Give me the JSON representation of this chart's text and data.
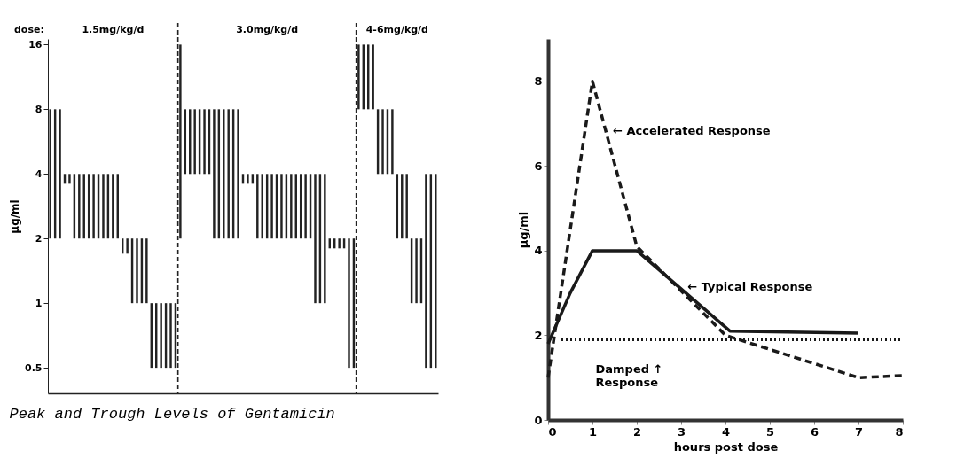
{
  "chart_data": [
    {
      "type": "bar",
      "ylabel": "µg/ml",
      "annotations": [
        "dose:",
        "1.5mg/kg/d",
        "3.0mg/kg/d",
        "4-6mg/kg/d",
        "Peak and Trough Levels of Gentamicin"
      ],
      "log": true,
      "ylim": [
        0.38,
        17
      ],
      "yticks": [
        0.5,
        1,
        2,
        4,
        8,
        16
      ],
      "tick_labels": "y",
      "grid": false,
      "categories": [
        null,
        null,
        null,
        null,
        null,
        null,
        null,
        null,
        null,
        null,
        null,
        null,
        null,
        null,
        null,
        null,
        null,
        null,
        null,
        null,
        null,
        null,
        null,
        null,
        null,
        null,
        null,
        null,
        null,
        null,
        null,
        null,
        null,
        null,
        null,
        null,
        null,
        null,
        null,
        null,
        null,
        null,
        null,
        null,
        null,
        null,
        null,
        null,
        null,
        null,
        null,
        null,
        null,
        null,
        null,
        null,
        null,
        null,
        null,
        null,
        null,
        null,
        null,
        null,
        null,
        null,
        null,
        null,
        null,
        null,
        null,
        null,
        null,
        null,
        null,
        null,
        null,
        null,
        null,
        null,
        null
      ],
      "series": [
        {
          "color": "#222222",
          "base": [
            2,
            2,
            2,
            3.6,
            3.6,
            2,
            2,
            2,
            2,
            2,
            2,
            2,
            2,
            2,
            2,
            1.7,
            1.7,
            1,
            1,
            1,
            1,
            0.5,
            0.5,
            0.5,
            0.5,
            0.5,
            0.5,
            null,
            null,
            null,
            null,
            null,
            null,
            null,
            null,
            null,
            null,
            null,
            null,
            null,
            null,
            null,
            null,
            null,
            null,
            null,
            null,
            null,
            null,
            null,
            null,
            null,
            null,
            null,
            null,
            null,
            null,
            null,
            null,
            null,
            null,
            null,
            null,
            null,
            null,
            null,
            null,
            null,
            null,
            null,
            null,
            null,
            null,
            null,
            null,
            null,
            null,
            null,
            null,
            null,
            null
          ],
          "values": [
            6,
            6,
            6,
            0.4,
            0.4,
            2,
            2,
            2,
            2,
            2,
            2,
            2,
            2,
            2,
            2,
            0.3,
            0.3,
            1,
            1,
            1,
            1,
            0.5,
            0.5,
            0.5,
            0.5,
            0.5,
            0.5,
            null,
            null,
            null,
            null,
            null,
            null,
            null,
            null,
            null,
            null,
            null,
            null,
            null,
            null,
            null,
            null,
            null,
            null,
            null,
            null,
            null,
            null,
            null,
            null,
            null,
            null,
            null,
            null,
            null,
            null,
            null,
            null,
            null,
            null,
            null,
            null,
            null,
            null,
            null,
            null,
            null,
            null,
            null,
            null,
            null,
            null,
            null,
            null,
            null,
            null,
            null,
            null,
            null,
            null
          ]
        },
        {
          "color": "#222222",
          "base": [
            null,
            null,
            null,
            null,
            null,
            null,
            null,
            null,
            null,
            null,
            null,
            null,
            null,
            null,
            null,
            null,
            null,
            null,
            null,
            null,
            null,
            null,
            null,
            null,
            null,
            null,
            null,
            2,
            4,
            4,
            4,
            4,
            4,
            4,
            2,
            2,
            2,
            2,
            2,
            2,
            3.6,
            3.6,
            3.6,
            2,
            2,
            2,
            2,
            2,
            2,
            2,
            2,
            2,
            2,
            2,
            2,
            1,
            1,
            1,
            1.8,
            1.8,
            1.8,
            1.8,
            0.5,
            0.5,
            null,
            null,
            null,
            null,
            null,
            null,
            null,
            null,
            null,
            null,
            null,
            null,
            null,
            null,
            null,
            null,
            null
          ],
          "values": [
            null,
            null,
            null,
            null,
            null,
            null,
            null,
            null,
            null,
            null,
            null,
            null,
            null,
            null,
            null,
            null,
            null,
            null,
            null,
            null,
            null,
            null,
            null,
            null,
            null,
            null,
            null,
            14,
            4,
            4,
            4,
            4,
            4,
            4,
            6,
            6,
            6,
            6,
            6,
            6,
            0.4,
            0.4,
            0.4,
            2,
            2,
            2,
            2,
            2,
            2,
            2,
            2,
            2,
            2,
            2,
            2,
            3,
            3,
            3,
            0.2,
            0.2,
            0.2,
            0.2,
            1.5,
            1.5,
            null,
            null,
            null,
            null,
            null,
            null,
            null,
            null,
            null,
            null,
            null,
            null,
            null,
            null,
            null,
            null,
            null
          ]
        },
        {
          "color": "#222222",
          "base": [
            null,
            null,
            null,
            null,
            null,
            null,
            null,
            null,
            null,
            null,
            null,
            null,
            null,
            null,
            null,
            null,
            null,
            null,
            null,
            null,
            null,
            null,
            null,
            null,
            null,
            null,
            null,
            null,
            null,
            null,
            null,
            null,
            null,
            null,
            null,
            null,
            null,
            null,
            null,
            null,
            null,
            null,
            null,
            null,
            null,
            null,
            null,
            null,
            null,
            null,
            null,
            null,
            null,
            null,
            null,
            null,
            null,
            null,
            null,
            null,
            null,
            null,
            null,
            null,
            8,
            8,
            8,
            8,
            4,
            4,
            4,
            4,
            2,
            2,
            2,
            1,
            1,
            1,
            0.5,
            0.5,
            0.5
          ],
          "values": [
            null,
            null,
            null,
            null,
            null,
            null,
            null,
            null,
            null,
            null,
            null,
            null,
            null,
            null,
            null,
            null,
            null,
            null,
            null,
            null,
            null,
            null,
            null,
            null,
            null,
            null,
            null,
            null,
            null,
            null,
            null,
            null,
            null,
            null,
            null,
            null,
            null,
            null,
            null,
            null,
            null,
            null,
            null,
            null,
            null,
            null,
            null,
            null,
            null,
            null,
            null,
            null,
            null,
            null,
            null,
            null,
            null,
            null,
            null,
            null,
            null,
            null,
            null,
            null,
            8,
            8,
            8,
            8,
            4,
            4,
            4,
            4,
            2,
            2,
            2,
            1,
            1,
            1,
            3.5,
            3.5,
            3.5
          ]
        }
      ]
    },
    {
      "type": "line",
      "xlabel": "hours post dose",
      "ylabel": "µg/ml",
      "xlim": [
        0,
        8
      ],
      "ylim": [
        0,
        9
      ],
      "xticks": [
        0,
        1,
        2,
        3,
        4,
        5,
        6,
        7,
        8
      ],
      "yticks": [
        0,
        2,
        4,
        6,
        8
      ],
      "grid": false,
      "annotations": [
        "← Accelerated Response",
        "← Typical Response",
        "Damped ↑\nResponse"
      ],
      "series": [
        {
          "color": "#1a1a1a",
          "line_style": "dashed",
          "x": [
            0,
            1,
            2,
            4,
            7,
            8
          ],
          "values": [
            1,
            8,
            4.1,
            2,
            1,
            1.05
          ]
        },
        {
          "color": "#1a1a1a",
          "line_style": "solid",
          "x": [
            0,
            0.5,
            1,
            2,
            4.1,
            7
          ],
          "values": [
            1.8,
            3,
            4,
            4,
            2.1,
            2.05
          ]
        },
        {
          "color": "#1a1a1a",
          "line_style": "dotted",
          "x": [
            0.3,
            8
          ],
          "values": [
            1.9,
            1.9
          ]
        }
      ]
    }
  ]
}
